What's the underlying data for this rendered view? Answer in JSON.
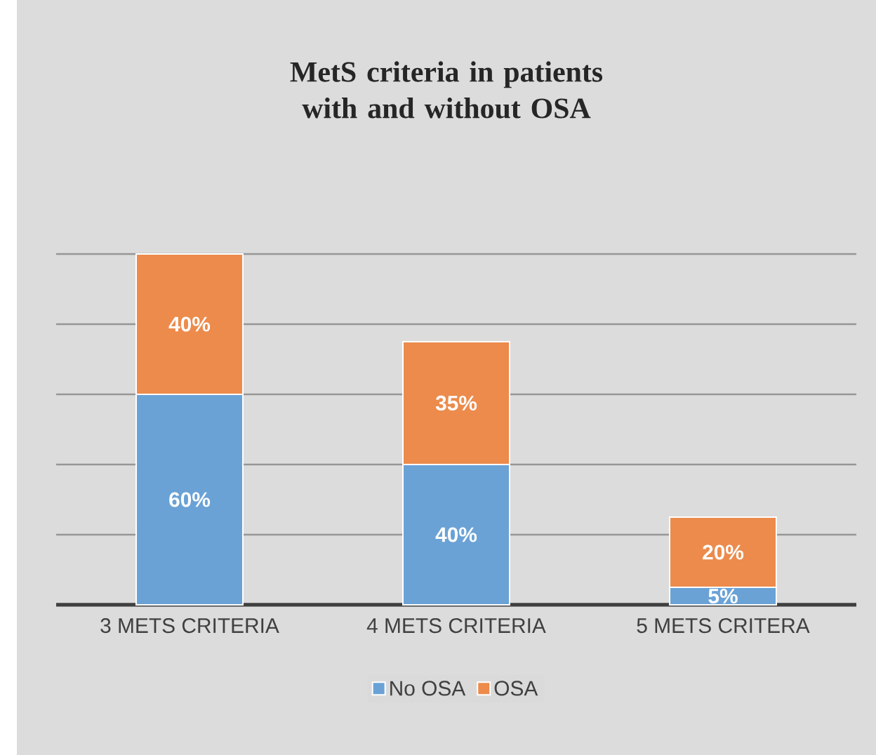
{
  "chart_data": {
    "type": "bar",
    "stacked": true,
    "title": "MetS criteria in patients with and without OSA",
    "categories": [
      "3 METS CRITERIA",
      "4 METS CRITERIA",
      "5 METS CRITERA"
    ],
    "series": [
      {
        "name": "No OSA",
        "color": "#6aa2d6",
        "values": [
          60,
          40,
          5
        ],
        "value_labels": [
          "60%",
          "40%",
          "5%"
        ]
      },
      {
        "name": "OSA",
        "color": "#ec8b4c",
        "values": [
          40,
          35,
          20
        ],
        "value_labels": [
          "40%",
          "35%",
          "20%"
        ]
      }
    ],
    "ylim": [
      0,
      100
    ],
    "yticks": [
      {
        "value": 0,
        "label": null
      },
      {
        "value": 20,
        "label": null
      },
      {
        "value": 40,
        "label": null
      },
      {
        "value": 60,
        "label": null
      },
      {
        "value": 80,
        "label": null
      },
      {
        "value": 100,
        "label": null
      }
    ],
    "tick_labels": "x",
    "grid": "y",
    "legend": "bottom"
  }
}
